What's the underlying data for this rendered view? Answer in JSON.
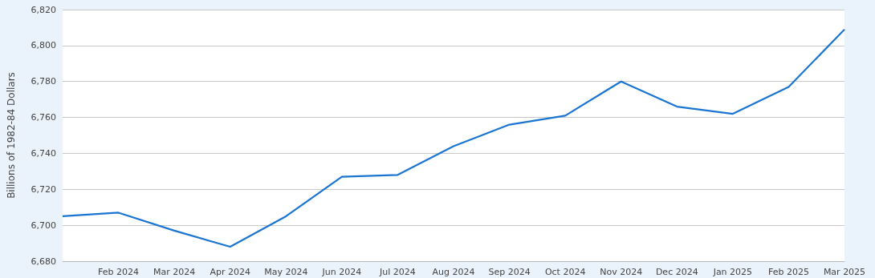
{
  "chart_data": {
    "type": "line",
    "ylabel": "Billions of 1982-84 Dollars",
    "categories": [
      null,
      "Feb 2024",
      "Mar 2024",
      "Apr 2024",
      "May 2024",
      "Jun 2024",
      "Jul 2024",
      "Aug 2024",
      "Sep 2024",
      "Oct 2024",
      "Nov 2024",
      "Dec 2024",
      "Jan 2025",
      "Feb 2025",
      "Mar 2025"
    ],
    "series": [
      {
        "color": "#1a75d2",
        "values": [
          6705,
          6707,
          6697,
          6688,
          6705,
          6727,
          6728,
          6744,
          6756,
          6761,
          6780,
          6766,
          6762,
          6777,
          6809
        ]
      }
    ],
    "ylim": [
      6680,
      6820
    ],
    "yticks": [
      {
        "value": 6680,
        "label": "6,680"
      },
      {
        "value": 6700,
        "label": "6,700"
      },
      {
        "value": 6720,
        "label": "6,720"
      },
      {
        "value": 6740,
        "label": "6,740"
      },
      {
        "value": 6760,
        "label": "6,760"
      },
      {
        "value": 6780,
        "label": "6,780"
      },
      {
        "value": 6800,
        "label": "6,800"
      },
      {
        "value": 6820,
        "label": "6,820"
      }
    ],
    "grid": "y",
    "marker": "none",
    "line_style": "solid"
  }
}
